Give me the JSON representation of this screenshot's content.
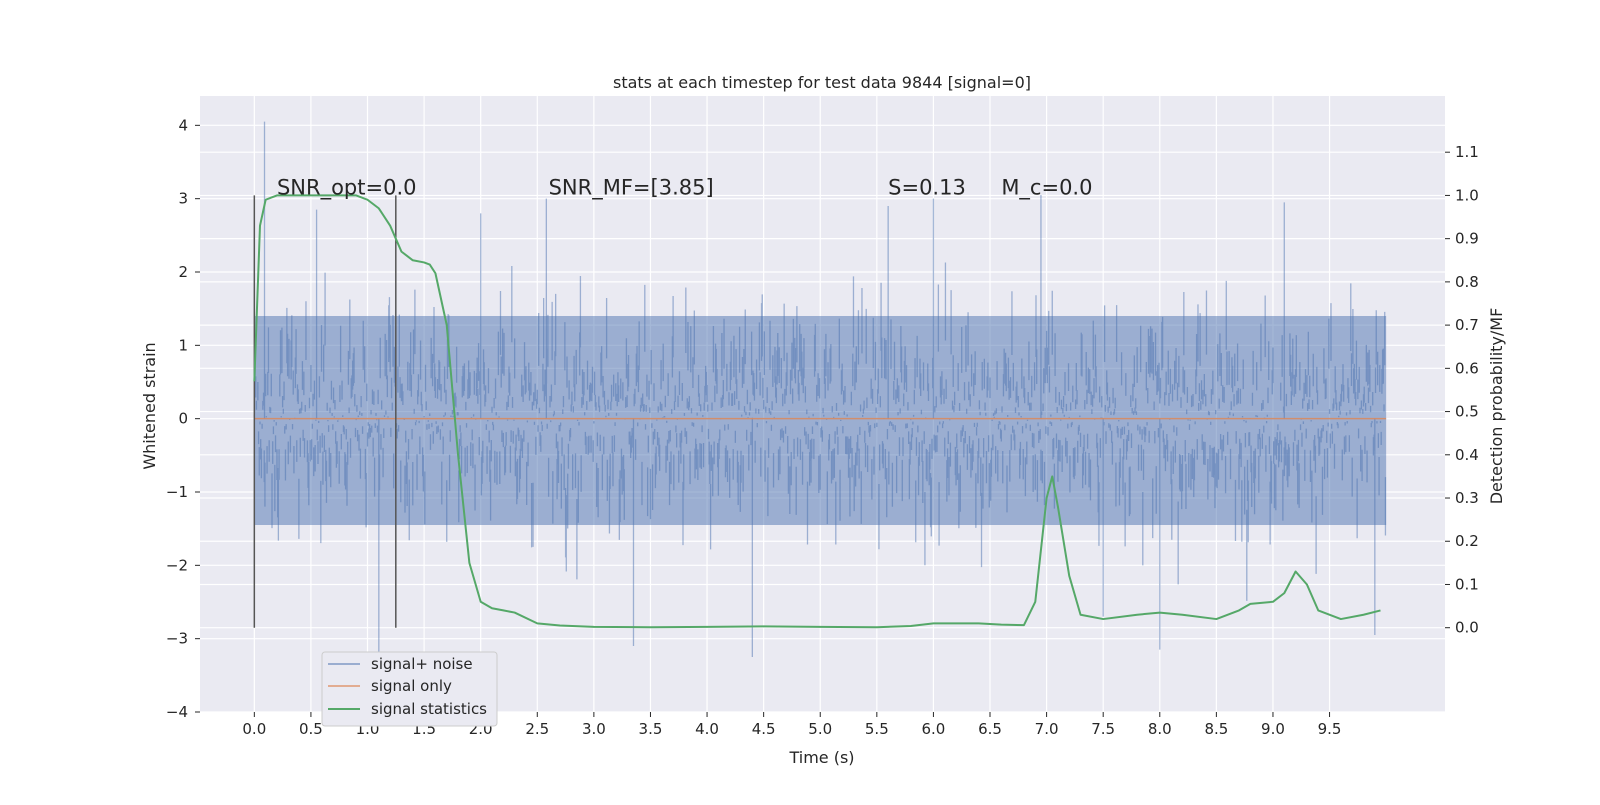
{
  "chart_data": {
    "type": "line",
    "title": "stats at each timestep for test data 9844 [signal=0]",
    "xlabel": "Time (s)",
    "ylabel_left": "Whitened strain",
    "ylabel_right": "Detection probability/MF",
    "xlim": [
      -0.48,
      10.52
    ],
    "ylim_left": [
      -4,
      4.4
    ],
    "ylim_right": [
      -0.195,
      1.23
    ],
    "x_ticks": [
      "0.0",
      "0.5",
      "1.0",
      "1.5",
      "2.0",
      "2.5",
      "3.0",
      "3.5",
      "4.0",
      "4.5",
      "5.0",
      "5.5",
      "6.0",
      "6.5",
      "7.0",
      "7.5",
      "8.0",
      "8.5",
      "9.0",
      "9.5"
    ],
    "y_left_ticks": [
      "4",
      "3",
      "2",
      "1",
      "0",
      "−1",
      "−2",
      "−3",
      "−4"
    ],
    "y_right_ticks": [
      "1.1",
      "1.0",
      "0.9",
      "0.8",
      "0.7",
      "0.6",
      "0.5",
      "0.4",
      "0.3",
      "0.2",
      "0.1",
      "0.0"
    ],
    "grid": true,
    "legend_position": "lower-left",
    "colors": {
      "noise": "#4c72b0",
      "signal": "#dd8452",
      "stats": "#55a868",
      "marker": "#555555",
      "background": "#eaeaf2",
      "grid": "#ffffff"
    },
    "series": [
      {
        "name": "signal+ noise",
        "axis": "left",
        "style": "dense noise band",
        "band_core": [
          -1.45,
          1.4
        ],
        "spikes_x": [
          0.09,
          0.55,
          1.1,
          2.0,
          2.58,
          3.35,
          4.4,
          5.6,
          6.0,
          6.95,
          7.5,
          8.0,
          9.1,
          9.9
        ],
        "spikes_y": [
          4.05,
          2.85,
          -3.2,
          2.8,
          3.0,
          -3.1,
          -3.25,
          2.9,
          3.0,
          3.05,
          -2.7,
          -3.15,
          2.95,
          -2.95
        ]
      },
      {
        "name": "signal only",
        "axis": "left",
        "x": [
          0.0,
          10.0
        ],
        "y": [
          0.0,
          0.0
        ]
      },
      {
        "name": "signal statistics",
        "axis": "right",
        "x": [
          0.0,
          0.05,
          0.1,
          0.15,
          0.2,
          0.3,
          0.5,
          0.7,
          0.9,
          1.0,
          1.1,
          1.2,
          1.3,
          1.4,
          1.5,
          1.55,
          1.6,
          1.7,
          1.8,
          1.9,
          2.0,
          2.1,
          2.2,
          2.3,
          2.5,
          2.7,
          3.0,
          3.5,
          4.0,
          4.5,
          5.0,
          5.5,
          5.8,
          6.0,
          6.4,
          6.6,
          6.8,
          6.9,
          7.0,
          7.05,
          7.1,
          7.2,
          7.3,
          7.5,
          7.8,
          8.0,
          8.2,
          8.5,
          8.7,
          8.8,
          9.0,
          9.1,
          9.2,
          9.3,
          9.4,
          9.6,
          9.8,
          9.95
        ],
        "y": [
          0.57,
          0.93,
          0.99,
          0.995,
          1.0,
          1.0,
          1.0,
          1.0,
          1.0,
          0.99,
          0.97,
          0.93,
          0.87,
          0.85,
          0.845,
          0.84,
          0.82,
          0.7,
          0.4,
          0.15,
          0.06,
          0.045,
          0.04,
          0.035,
          0.01,
          0.005,
          0.002,
          0.001,
          0.002,
          0.003,
          0.002,
          0.001,
          0.004,
          0.01,
          0.01,
          0.007,
          0.006,
          0.06,
          0.3,
          0.35,
          0.28,
          0.12,
          0.03,
          0.02,
          0.03,
          0.035,
          0.03,
          0.02,
          0.04,
          0.055,
          0.06,
          0.08,
          0.13,
          0.1,
          0.04,
          0.02,
          0.03,
          0.04
        ]
      }
    ],
    "markers_x": [
      0.0,
      1.25
    ],
    "annotations": [
      {
        "text": "SNR_opt=0.0",
        "x": 0.2,
        "y": 1.0
      },
      {
        "text": "SNR_MF=[3.85]",
        "x": 2.6,
        "y": 1.0
      },
      {
        "text": "S=0.13",
        "x": 5.6,
        "y": 1.0
      },
      {
        "text": "M_c=0.0",
        "x": 6.6,
        "y": 1.0
      }
    ]
  }
}
